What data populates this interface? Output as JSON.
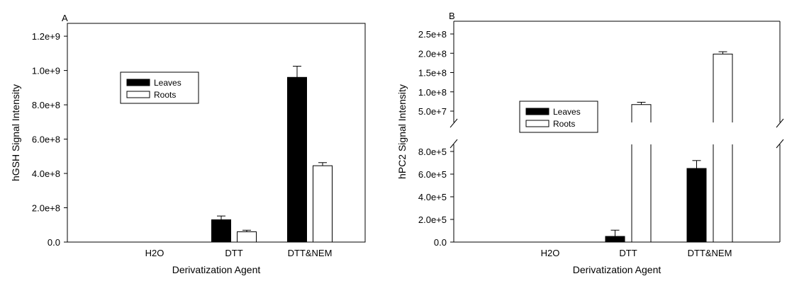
{
  "chart_data": [
    {
      "type": "bar",
      "panel_label": "A",
      "categories": [
        "H2O",
        "DTT",
        "DTT&NEM"
      ],
      "series": [
        {
          "name": "Leaves",
          "values": [
            0,
            130000000,
            960000000
          ],
          "errors": [
            0,
            22000000,
            65000000
          ],
          "color": "#000000"
        },
        {
          "name": "Roots",
          "values": [
            0,
            60000000,
            445000000
          ],
          "errors": [
            0,
            9000000,
            18000000
          ],
          "color": "#ffffff"
        }
      ],
      "xlabel": "Derivatization Agent",
      "ylabel": "hGSH Signal Intensity",
      "ylim": [
        0,
        1300000000
      ],
      "yticks": [
        0,
        200000000,
        400000000,
        600000000,
        800000000,
        1000000000,
        1200000000
      ],
      "ytick_labels": [
        "0.0",
        "2.0e+8",
        "4.0e+8",
        "6.0e+8",
        "8.0e+8",
        "1.0e+9",
        "1.2e+9"
      ],
      "legend_position": "upper-left",
      "grid": false
    },
    {
      "type": "bar",
      "panel_label": "B",
      "categories": [
        "H2O",
        "DTT",
        "DTT&NEM"
      ],
      "series": [
        {
          "name": "Leaves",
          "values": [
            0,
            50000,
            650000
          ],
          "errors": [
            0,
            55000,
            70000
          ],
          "color": "#000000"
        },
        {
          "name": "Roots",
          "values": [
            0,
            67000000,
            198000000
          ],
          "errors": [
            0,
            6000000,
            6000000
          ],
          "color": "#ffffff"
        }
      ],
      "xlabel": "Derivatization Agent",
      "ylabel": "hPC2 Signal Intensity",
      "broken_axis": true,
      "lower_ylim": [
        0,
        900000
      ],
      "upper_ylim": [
        30000000,
        270000000
      ],
      "lower_yticks": [
        0,
        200000,
        400000,
        600000,
        800000
      ],
      "lower_ytick_labels": [
        "0.0",
        "2.0e+5",
        "4.0e+5",
        "6.0e+5",
        "8.0e+5"
      ],
      "upper_yticks": [
        50000000,
        100000000,
        150000000,
        200000000,
        250000000
      ],
      "upper_ytick_labels": [
        "5.0e+7",
        "1.0e+8",
        "1.5e+8",
        "2.0e+8",
        "2.5e+8"
      ],
      "legend_position": "center-left",
      "grid": false
    }
  ]
}
